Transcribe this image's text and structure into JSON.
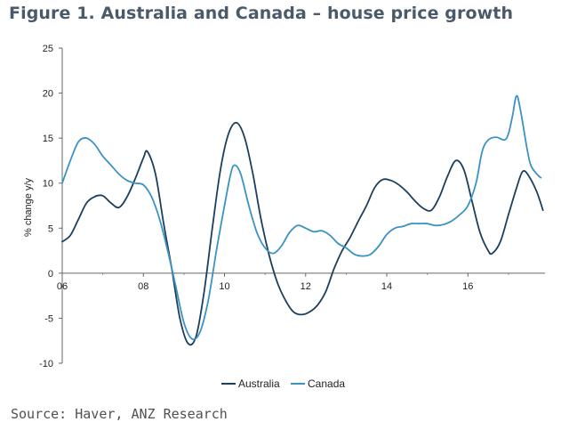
{
  "title": "Figure 1. Australia and Canada – house price growth",
  "source": "Source: Haver, ANZ Research",
  "chart_data": {
    "type": "line",
    "title": "Figure 1. Australia and Canada – house price growth",
    "xlabel": "",
    "ylabel": "% change y/y",
    "xlim": [
      2006.0,
      2017.9
    ],
    "ylim": [
      -10,
      25
    ],
    "x_ticks": [
      2006,
      2008,
      2010,
      2012,
      2014,
      2016
    ],
    "x_tick_labels": [
      "06",
      "08",
      "10",
      "12",
      "14",
      "16"
    ],
    "y_ticks": [
      -10,
      -5,
      0,
      5,
      10,
      15,
      20,
      25
    ],
    "y_tick_labels": [
      "-10",
      "-5",
      "0",
      "5",
      "10",
      "15",
      "20",
      "25"
    ],
    "grid": false,
    "legend": "bottom-center",
    "series": [
      {
        "name": "Australia",
        "color": "#1c3f5e",
        "points": [
          [
            2006.0,
            3.5
          ],
          [
            2006.2,
            4.2
          ],
          [
            2006.4,
            6.0
          ],
          [
            2006.6,
            7.8
          ],
          [
            2006.8,
            8.5
          ],
          [
            2007.0,
            8.6
          ],
          [
            2007.2,
            7.8
          ],
          [
            2007.4,
            7.3
          ],
          [
            2007.6,
            8.5
          ],
          [
            2007.8,
            10.5
          ],
          [
            2008.0,
            12.8
          ],
          [
            2008.1,
            13.5
          ],
          [
            2008.3,
            11.0
          ],
          [
            2008.5,
            5.5
          ],
          [
            2008.7,
            0.5
          ],
          [
            2008.9,
            -5.0
          ],
          [
            2009.1,
            -7.8
          ],
          [
            2009.3,
            -7.0
          ],
          [
            2009.5,
            -2.0
          ],
          [
            2009.7,
            5.0
          ],
          [
            2009.9,
            11.5
          ],
          [
            2010.1,
            15.5
          ],
          [
            2010.3,
            16.7
          ],
          [
            2010.5,
            15.0
          ],
          [
            2010.7,
            11.0
          ],
          [
            2010.9,
            6.0
          ],
          [
            2011.1,
            2.0
          ],
          [
            2011.3,
            -1.0
          ],
          [
            2011.5,
            -3.0
          ],
          [
            2011.7,
            -4.3
          ],
          [
            2011.9,
            -4.6
          ],
          [
            2012.1,
            -4.3
          ],
          [
            2012.3,
            -3.5
          ],
          [
            2012.5,
            -2.0
          ],
          [
            2012.7,
            0.5
          ],
          [
            2012.9,
            2.5
          ],
          [
            2013.1,
            4.0
          ],
          [
            2013.3,
            5.8
          ],
          [
            2013.5,
            7.5
          ],
          [
            2013.7,
            9.5
          ],
          [
            2013.9,
            10.4
          ],
          [
            2014.1,
            10.3
          ],
          [
            2014.3,
            9.8
          ],
          [
            2014.5,
            9.0
          ],
          [
            2014.7,
            8.0
          ],
          [
            2014.9,
            7.2
          ],
          [
            2015.1,
            7.0
          ],
          [
            2015.3,
            8.5
          ],
          [
            2015.5,
            10.8
          ],
          [
            2015.7,
            12.5
          ],
          [
            2015.9,
            11.5
          ],
          [
            2016.1,
            8.0
          ],
          [
            2016.3,
            4.5
          ],
          [
            2016.5,
            2.5
          ],
          [
            2016.6,
            2.2
          ],
          [
            2016.8,
            3.5
          ],
          [
            2017.0,
            6.5
          ],
          [
            2017.2,
            9.5
          ],
          [
            2017.35,
            11.3
          ],
          [
            2017.5,
            10.8
          ],
          [
            2017.7,
            9.0
          ],
          [
            2017.85,
            7.0
          ]
        ]
      },
      {
        "name": "Canada",
        "color": "#3a93c3",
        "points": [
          [
            2006.0,
            10.0
          ],
          [
            2006.2,
            12.5
          ],
          [
            2006.4,
            14.6
          ],
          [
            2006.6,
            15.0
          ],
          [
            2006.8,
            14.3
          ],
          [
            2007.0,
            13.0
          ],
          [
            2007.2,
            12.0
          ],
          [
            2007.4,
            11.0
          ],
          [
            2007.6,
            10.3
          ],
          [
            2007.8,
            10.0
          ],
          [
            2008.0,
            9.8
          ],
          [
            2008.2,
            8.5
          ],
          [
            2008.4,
            6.0
          ],
          [
            2008.6,
            2.5
          ],
          [
            2008.8,
            -1.5
          ],
          [
            2009.0,
            -5.5
          ],
          [
            2009.2,
            -7.3
          ],
          [
            2009.4,
            -6.5
          ],
          [
            2009.6,
            -3.0
          ],
          [
            2009.8,
            2.5
          ],
          [
            2010.0,
            7.5
          ],
          [
            2010.15,
            11.0
          ],
          [
            2010.25,
            12.0
          ],
          [
            2010.4,
            11.0
          ],
          [
            2010.6,
            7.5
          ],
          [
            2010.8,
            4.5
          ],
          [
            2011.0,
            2.8
          ],
          [
            2011.2,
            2.2
          ],
          [
            2011.4,
            3.0
          ],
          [
            2011.6,
            4.5
          ],
          [
            2011.8,
            5.3
          ],
          [
            2012.0,
            5.0
          ],
          [
            2012.2,
            4.6
          ],
          [
            2012.4,
            4.7
          ],
          [
            2012.6,
            4.2
          ],
          [
            2012.8,
            3.3
          ],
          [
            2013.0,
            2.8
          ],
          [
            2013.2,
            2.1
          ],
          [
            2013.4,
            1.9
          ],
          [
            2013.6,
            2.1
          ],
          [
            2013.8,
            3.0
          ],
          [
            2014.0,
            4.3
          ],
          [
            2014.2,
            5.0
          ],
          [
            2014.4,
            5.2
          ],
          [
            2014.6,
            5.5
          ],
          [
            2014.8,
            5.5
          ],
          [
            2015.0,
            5.5
          ],
          [
            2015.2,
            5.3
          ],
          [
            2015.4,
            5.4
          ],
          [
            2015.6,
            5.8
          ],
          [
            2015.8,
            6.5
          ],
          [
            2016.0,
            7.5
          ],
          [
            2016.2,
            10.0
          ],
          [
            2016.35,
            13.5
          ],
          [
            2016.5,
            14.8
          ],
          [
            2016.7,
            15.1
          ],
          [
            2016.9,
            14.8
          ],
          [
            2017.0,
            15.5
          ],
          [
            2017.1,
            17.5
          ],
          [
            2017.2,
            19.7
          ],
          [
            2017.3,
            18.0
          ],
          [
            2017.45,
            14.0
          ],
          [
            2017.55,
            12.0
          ],
          [
            2017.7,
            11.0
          ],
          [
            2017.8,
            10.6
          ]
        ]
      }
    ]
  }
}
